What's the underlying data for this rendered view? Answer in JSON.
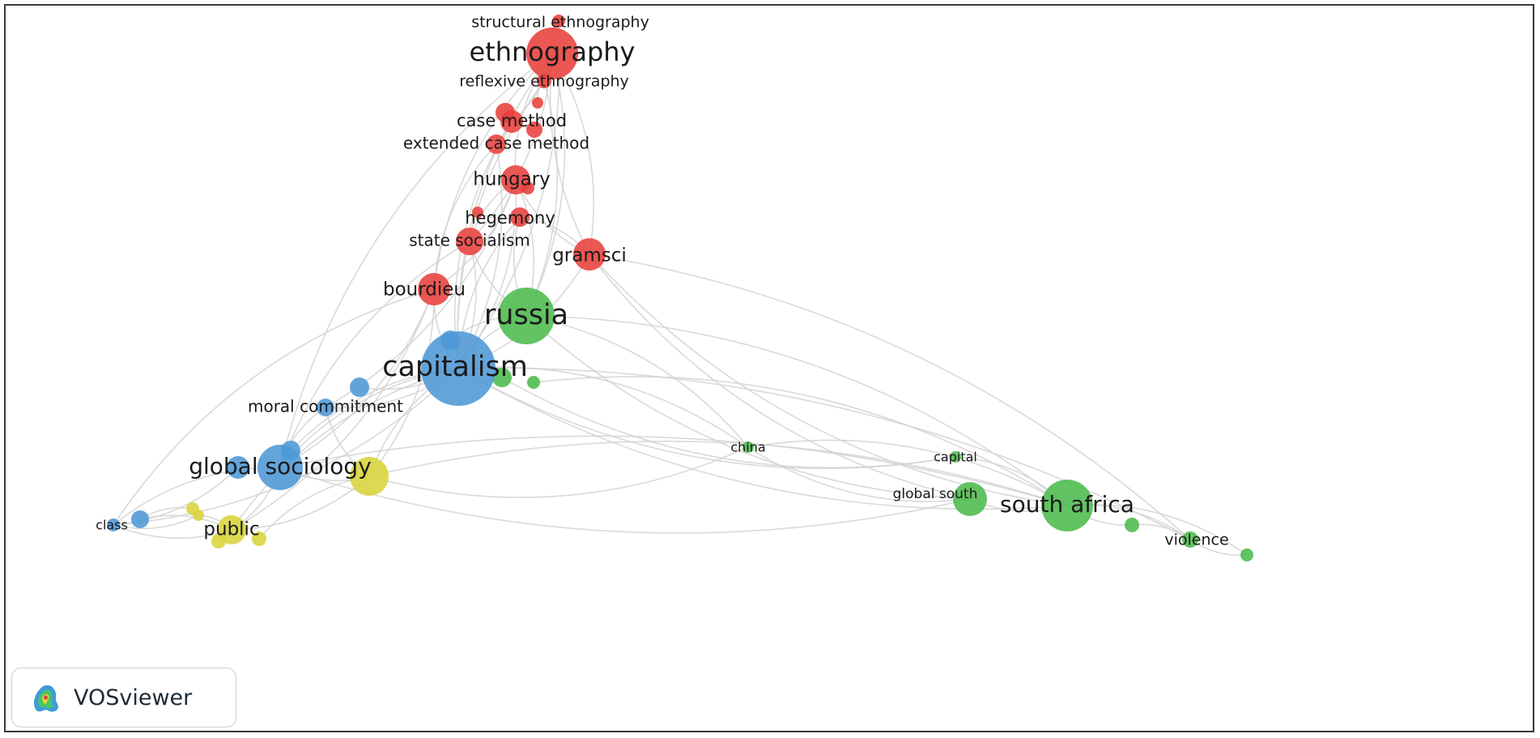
{
  "logo": {
    "text": "VOSviewer",
    "icon": "vosviewer-density-map-icon"
  },
  "colors": {
    "cluster_red": "#e8403b",
    "cluster_green": "#4cbb4c",
    "cluster_blue": "#4d97d6",
    "cluster_yellow": "#d8d43a",
    "links": "#d2d2d2",
    "label": "#1a1a1a"
  },
  "nodes": [
    {
      "id": "structural-ethnography",
      "label": "structural ethnography",
      "cluster": "red"
    },
    {
      "id": "ethnography",
      "label": "ethnography",
      "cluster": "red"
    },
    {
      "id": "reflexive-ethnography",
      "label": "reflexive ethnography",
      "cluster": "red"
    },
    {
      "id": "case-method",
      "label": "case method",
      "cluster": "red"
    },
    {
      "id": "extended-case-method",
      "label": "extended case method",
      "cluster": "red"
    },
    {
      "id": "hungary",
      "label": "hungary",
      "cluster": "red"
    },
    {
      "id": "hegemony",
      "label": "hegemony",
      "cluster": "red"
    },
    {
      "id": "state-socialism",
      "label": "state socialism",
      "cluster": "red"
    },
    {
      "id": "gramsci",
      "label": "gramsci",
      "cluster": "red"
    },
    {
      "id": "bourdieu",
      "label": "bourdieu",
      "cluster": "red"
    },
    {
      "id": "russia",
      "label": "russia",
      "cluster": "green"
    },
    {
      "id": "capitalism",
      "label": "capitalism",
      "cluster": "blue"
    },
    {
      "id": "moral-commitment",
      "label": "moral commitment",
      "cluster": "blue"
    },
    {
      "id": "global-sociology",
      "label": "global sociology",
      "cluster": "blue"
    },
    {
      "id": "class",
      "label": "class",
      "cluster": "blue"
    },
    {
      "id": "public",
      "label": "public",
      "cluster": "yellow"
    },
    {
      "id": "china",
      "label": "china",
      "cluster": "green"
    },
    {
      "id": "capital",
      "label": "capital",
      "cluster": "green"
    },
    {
      "id": "global-south",
      "label": "global south",
      "cluster": "green"
    },
    {
      "id": "south-africa",
      "label": "south africa",
      "cluster": "green"
    },
    {
      "id": "violence",
      "label": "violence",
      "cluster": "green"
    }
  ]
}
